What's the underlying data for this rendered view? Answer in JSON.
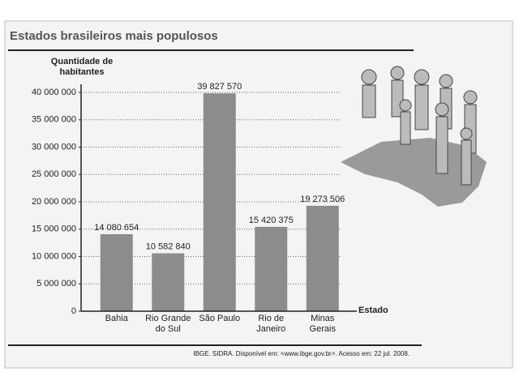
{
  "chart_data": {
    "type": "bar",
    "title": "Estados brasileiros mais populosos",
    "y_label": "Quantidade de habitantes",
    "x_label": "Estado",
    "source": "IBGE. SIDRA. Disponível em: <www.ibge.gov.br>. Acesso em: 22 jul. 2008.",
    "categories": [
      "Bahia",
      "Rio Grande do Sul",
      "São Paulo",
      "Rio de Janeiro",
      "Minas Gerais"
    ],
    "values": [
      14080654,
      10582840,
      39827570,
      15420375,
      19273506
    ],
    "value_labels": [
      "14 080 654",
      "10 582 840",
      "39 827 570",
      "15 420 375",
      "19 273 506"
    ],
    "color": "#8c8c8c",
    "ylim": [
      0,
      40000000
    ],
    "yticks": [
      0,
      {
        "value": 5000000,
        "label": "5 000 000"
      },
      {
        "value": 10000000,
        "label": "10 000 000"
      },
      {
        "value": 15000000,
        "label": "15 000 000"
      },
      {
        "value": 20000000,
        "label": "20 000 000"
      },
      {
        "value": 25000000,
        "label": "25 000 000"
      },
      {
        "value": 30000000,
        "label": "30 000 000"
      },
      {
        "value": 35000000,
        "label": "35 000 000"
      },
      {
        "value": 40000000,
        "label": "40 000 000"
      }
    ],
    "grid": true
  }
}
